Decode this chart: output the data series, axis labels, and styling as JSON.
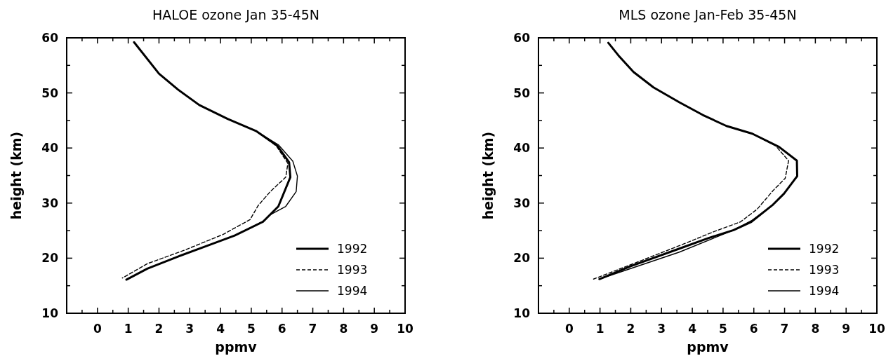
{
  "chart_data": [
    {
      "type": "line",
      "title": "HALOE ozone Jan 35-45N",
      "xlabel": "ppmv",
      "ylabel": "height (km)",
      "xlim": [
        -1,
        10
      ],
      "ylim": [
        10,
        60
      ],
      "xticks": [
        {
          "value": -0.5,
          "label": null
        },
        0,
        {
          "value": 0.5,
          "label": null
        },
        1,
        {
          "value": 1.5,
          "label": null
        },
        2,
        {
          "value": 2.5,
          "label": null
        },
        3,
        {
          "value": 3.5,
          "label": null
        },
        4,
        {
          "value": 4.5,
          "label": null
        },
        5,
        {
          "value": 5.5,
          "label": null
        },
        6,
        {
          "value": 6.5,
          "label": null
        },
        7,
        {
          "value": 7.5,
          "label": null
        },
        8,
        {
          "value": 8.5,
          "label": null
        },
        9,
        {
          "value": 9.5,
          "label": null
        },
        10
      ],
      "yticks": [
        10,
        {
          "value": 15,
          "label": null
        },
        20,
        {
          "value": 25,
          "label": null
        },
        30,
        {
          "value": 35,
          "label": null
        },
        40,
        {
          "value": 45,
          "label": null
        },
        50,
        {
          "value": 55,
          "label": null
        },
        60
      ],
      "legend": "bottom right",
      "series": [
        {
          "name": "1992",
          "color": "#000000",
          "line_style": "solid",
          "x": [
            1.19,
            2.0,
            2.62,
            3.31,
            4.23,
            5.15,
            5.85,
            6.23,
            6.27,
            5.88,
            5.38,
            4.46,
            3.54,
            2.62,
            1.62,
            0.94
          ],
          "values": [
            59.2,
            53.5,
            50.6,
            47.8,
            45.3,
            43.1,
            40.4,
            37.4,
            34.7,
            29.4,
            26.6,
            24.1,
            22.2,
            20.3,
            18.1,
            16.1
          ]
        },
        {
          "name": "1993",
          "color": "#000000",
          "line_style": "dashed",
          "x": [
            1.19,
            2.0,
            2.62,
            3.31,
            4.23,
            5.15,
            5.81,
            6.19,
            6.12,
            5.62,
            5.23,
            4.96,
            4.08,
            2.85,
            1.62,
            0.81
          ],
          "values": [
            59.2,
            53.5,
            50.6,
            47.8,
            45.3,
            43.1,
            40.4,
            37.2,
            34.7,
            32.1,
            29.6,
            27.0,
            24.3,
            21.5,
            19.0,
            16.4
          ]
        },
        {
          "name": "1994",
          "color": "#000000",
          "line_style": "solid",
          "x": [
            1.19,
            2.0,
            2.62,
            3.31,
            4.23,
            5.15,
            5.88,
            6.35,
            6.5,
            6.46,
            6.12,
            5.62,
            5.38,
            4.46,
            3.54,
            2.62,
            1.62,
            0.94
          ],
          "values": [
            59.2,
            53.5,
            50.6,
            47.8,
            45.3,
            43.1,
            40.6,
            37.6,
            34.9,
            32.1,
            29.4,
            27.9,
            26.7,
            24.1,
            22.2,
            20.3,
            18.1,
            16.1
          ]
        }
      ]
    },
    {
      "type": "line",
      "title": "MLS ozone Jan-Feb 35-45N",
      "xlabel": "ppmv",
      "ylabel": "height (km)",
      "xlim": [
        -1,
        10
      ],
      "ylim": [
        10,
        60
      ],
      "xticks": [
        {
          "value": -0.5,
          "label": null
        },
        0,
        {
          "value": 0.5,
          "label": null
        },
        1,
        {
          "value": 1.5,
          "label": null
        },
        2,
        {
          "value": 2.5,
          "label": null
        },
        3,
        {
          "value": 3.5,
          "label": null
        },
        4,
        {
          "value": 4.5,
          "label": null
        },
        5,
        {
          "value": 5.5,
          "label": null
        },
        6,
        {
          "value": 6.5,
          "label": null
        },
        7,
        {
          "value": 7.5,
          "label": null
        },
        8,
        {
          "value": 8.5,
          "label": null
        },
        9,
        {
          "value": 9.5,
          "label": null
        },
        10
      ],
      "yticks": [
        10,
        {
          "value": 15,
          "label": null
        },
        20,
        {
          "value": 25,
          "label": null
        },
        30,
        {
          "value": 35,
          "label": null
        },
        40,
        {
          "value": 45,
          "label": null
        },
        50,
        {
          "value": 55,
          "label": null
        },
        60
      ],
      "legend": "bottom right",
      "series": [
        {
          "name": "1992",
          "color": "#000000",
          "line_style": "solid",
          "x": [
            1.27,
            1.6,
            2.09,
            2.74,
            3.58,
            4.34,
            5.11,
            5.95,
            6.82,
            7.4,
            7.41,
            6.98,
            6.6,
            5.92,
            5.34,
            4.5,
            3.66,
            1.98,
            0.98
          ],
          "values": [
            59.1,
            56.8,
            53.8,
            51.0,
            48.3,
            46.0,
            44.0,
            42.6,
            40.2,
            37.7,
            34.9,
            31.7,
            29.6,
            26.6,
            25.1,
            23.6,
            21.9,
            18.5,
            16.2
          ]
        },
        {
          "name": "1993",
          "color": "#000000",
          "line_style": "dashed",
          "x": [
            1.27,
            1.6,
            2.09,
            2.74,
            3.58,
            4.34,
            5.11,
            5.95,
            6.71,
            7.13,
            7.02,
            6.63,
            6.11,
            5.57,
            4.65,
            3.73,
            2.36,
            0.79
          ],
          "values": [
            59.1,
            56.8,
            53.8,
            51.0,
            48.3,
            46.0,
            44.0,
            42.6,
            40.4,
            37.7,
            34.5,
            32.3,
            28.9,
            26.6,
            24.7,
            22.6,
            19.6,
            16.2
          ]
        },
        {
          "name": "1994",
          "color": "#000000",
          "line_style": "solid",
          "x": [
            1.27,
            1.6,
            2.09,
            2.74,
            3.58,
            4.34,
            5.11,
            5.95,
            6.82,
            7.4,
            7.41,
            6.98,
            6.56,
            5.92,
            5.34,
            3.58,
            0.98
          ],
          "values": [
            59.1,
            56.8,
            53.8,
            51.0,
            48.3,
            46.0,
            44.0,
            42.6,
            40.2,
            37.7,
            34.9,
            31.7,
            29.4,
            26.8,
            25.1,
            21.1,
            16.2
          ]
        }
      ]
    }
  ]
}
